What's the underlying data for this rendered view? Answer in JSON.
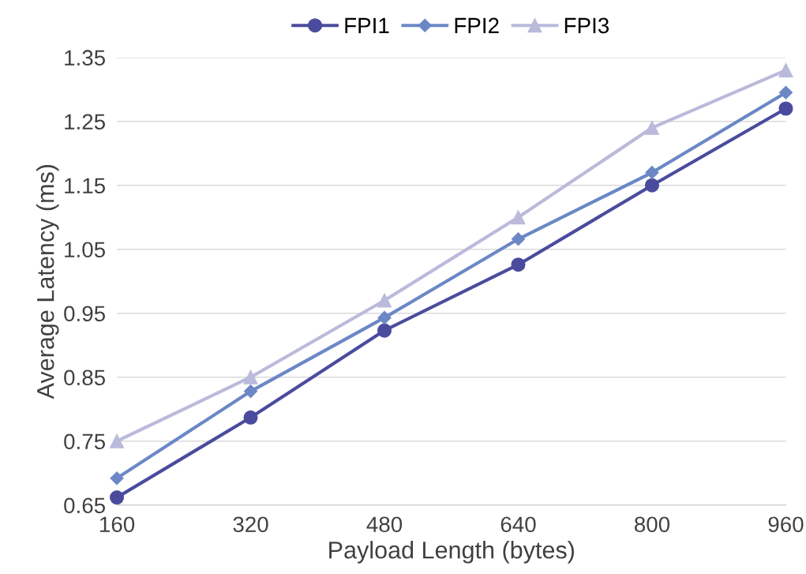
{
  "chart_data": {
    "type": "line",
    "xlabel": "Payload Length (bytes)",
    "ylabel": "Average Latency (ms)",
    "x": [
      160,
      320,
      480,
      640,
      800,
      960
    ],
    "series": [
      {
        "name": "FPI1",
        "color": "#4b4b9e",
        "marker": "circle",
        "values": [
          0.662,
          0.787,
          0.923,
          1.026,
          1.15,
          1.27
        ]
      },
      {
        "name": "FPI2",
        "color": "#6b87c6",
        "marker": "diamond",
        "values": [
          0.692,
          0.828,
          0.943,
          1.066,
          1.17,
          1.295
        ]
      },
      {
        "name": "FPI3",
        "color": "#babadb",
        "marker": "triangle",
        "values": [
          0.75,
          0.85,
          0.97,
          1.1,
          1.24,
          1.33
        ]
      }
    ],
    "xlim": [
      160,
      960
    ],
    "xticks": [
      160,
      320,
      480,
      640,
      800,
      960
    ],
    "ylim": [
      0.65,
      1.35
    ],
    "yticks": [
      {
        "value": 0.65,
        "label": "0.65"
      },
      {
        "value": 0.75,
        "label": "0.75"
      },
      {
        "value": 0.85,
        "label": "0.85"
      },
      {
        "value": 0.95,
        "label": "0.95"
      },
      {
        "value": 1.05,
        "label": "1.05"
      },
      {
        "value": 1.15,
        "label": "1.15"
      },
      {
        "value": 1.25,
        "label": "1.25"
      },
      {
        "value": 1.35,
        "label": "1.35"
      }
    ],
    "grid": "y",
    "legend": "top",
    "line_style": "solid"
  }
}
